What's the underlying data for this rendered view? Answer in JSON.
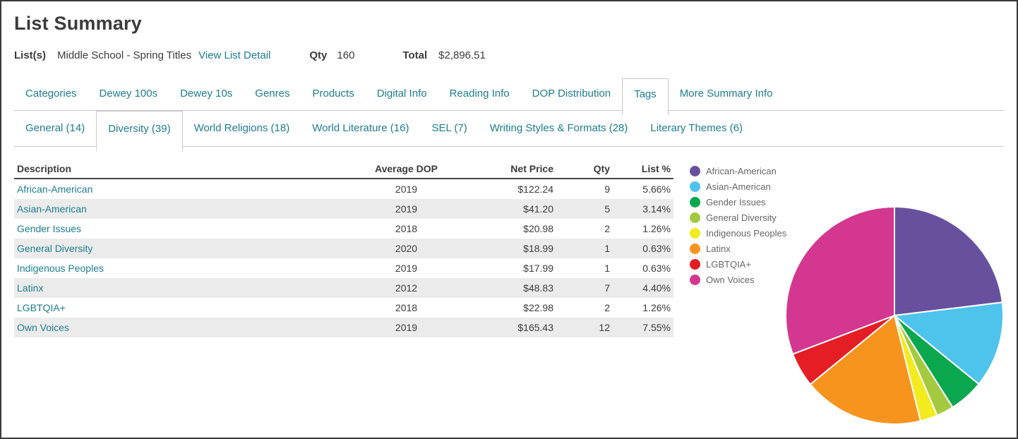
{
  "page": {
    "title": "List Summary"
  },
  "meta": {
    "lists_label": "List(s)",
    "list_name": "Middle School - Spring Titles",
    "view_link": "View List Detail",
    "qty_label": "Qty",
    "qty_value": "160",
    "total_label": "Total",
    "total_value": "$2,896.51"
  },
  "tabs_primary": [
    {
      "label": "Categories",
      "active": false
    },
    {
      "label": "Dewey 100s",
      "active": false
    },
    {
      "label": "Dewey 10s",
      "active": false
    },
    {
      "label": "Genres",
      "active": false
    },
    {
      "label": "Products",
      "active": false
    },
    {
      "label": "Digital Info",
      "active": false
    },
    {
      "label": "Reading Info",
      "active": false
    },
    {
      "label": "DOP Distribution",
      "active": false
    },
    {
      "label": "Tags",
      "active": true
    },
    {
      "label": "More Summary Info",
      "active": false
    }
  ],
  "tabs_secondary": [
    {
      "label": "General (14)",
      "active": false
    },
    {
      "label": "Diversity (39)",
      "active": true
    },
    {
      "label": "World Religions (18)",
      "active": false
    },
    {
      "label": "World Literature (16)",
      "active": false
    },
    {
      "label": "SEL (7)",
      "active": false
    },
    {
      "label": "Writing Styles & Formats (28)",
      "active": false
    },
    {
      "label": "Literary Themes (6)",
      "active": false
    }
  ],
  "table": {
    "columns": [
      "Description",
      "Average DOP",
      "Net Price",
      "Qty",
      "List %"
    ],
    "rows": [
      {
        "description": "African-American",
        "avg_dop": "2019",
        "net_price": "$122.24",
        "qty": "9",
        "list_pct": "5.66%"
      },
      {
        "description": "Asian-American",
        "avg_dop": "2019",
        "net_price": "$41.20",
        "qty": "5",
        "list_pct": "3.14%"
      },
      {
        "description": "Gender Issues",
        "avg_dop": "2018",
        "net_price": "$20.98",
        "qty": "2",
        "list_pct": "1.26%"
      },
      {
        "description": "General Diversity",
        "avg_dop": "2020",
        "net_price": "$18.99",
        "qty": "1",
        "list_pct": "0.63%"
      },
      {
        "description": "Indigenous Peoples",
        "avg_dop": "2019",
        "net_price": "$17.99",
        "qty": "1",
        "list_pct": "0.63%"
      },
      {
        "description": "Latinx",
        "avg_dop": "2012",
        "net_price": "$48.83",
        "qty": "7",
        "list_pct": "4.40%"
      },
      {
        "description": "LGBTQIA+",
        "avg_dop": "2018",
        "net_price": "$22.98",
        "qty": "2",
        "list_pct": "1.26%"
      },
      {
        "description": "Own Voices",
        "avg_dop": "2019",
        "net_price": "$165.43",
        "qty": "12",
        "list_pct": "7.55%"
      }
    ]
  },
  "chart_data": {
    "type": "pie",
    "title": "",
    "categories": [
      "African-American",
      "Asian-American",
      "Gender Issues",
      "General Diversity",
      "Indigenous Peoples",
      "Latinx",
      "LGBTQIA+",
      "Own Voices"
    ],
    "values": [
      5.66,
      3.14,
      1.26,
      0.63,
      0.63,
      4.4,
      1.26,
      7.55
    ],
    "value_unit": "list_percent",
    "colors": [
      "#67519f",
      "#4ec3ec",
      "#0aa74f",
      "#a4c93f",
      "#f2eb1e",
      "#f7941e",
      "#e41e24",
      "#d33790"
    ],
    "legend_position": "left",
    "start_angle": "top",
    "direction": "clockwise"
  },
  "colors": {
    "accent_teal": "#1e7d8e",
    "text_dark": "#3b3b3b",
    "row_alt": "#ebebeb",
    "tab_border": "#c9c9c9",
    "header_rule": "#4a4a4a",
    "legend_text": "#666666",
    "frame": "#3a3a3a",
    "slice_separator": "#ffffff"
  }
}
